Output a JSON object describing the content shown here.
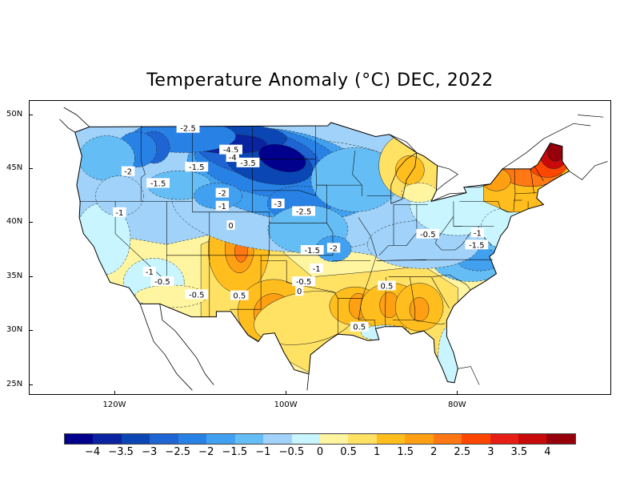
{
  "title": "Temperature Anomaly (°C) DEC, 2022",
  "lat_labels": [
    {
      "text": "50N",
      "lat": 50
    },
    {
      "text": "45N",
      "lat": 45
    },
    {
      "text": "40N",
      "lat": 40
    },
    {
      "text": "35N",
      "lat": 35
    },
    {
      "text": "30N",
      "lat": 30
    },
    {
      "text": "25N",
      "lat": 25
    }
  ],
  "lon_labels": [
    {
      "text": "120W",
      "lon": -120
    },
    {
      "text": "100W",
      "lon": -100
    },
    {
      "text": "80W",
      "lon": -80
    }
  ],
  "colorbar": {
    "colors": [
      "#00008c",
      "#0a23a0",
      "#0a46b4",
      "#1e64d2",
      "#2882e6",
      "#41a0f0",
      "#64bef5",
      "#a0d2fa",
      "#c8f5ff",
      "#fff5a0",
      "#ffe164",
      "#ffbe1e",
      "#ffa014",
      "#ff7814",
      "#ff4600",
      "#e61e14",
      "#c80a0a",
      "#96000a"
    ],
    "labels": [
      "−4",
      "−3.5",
      "−3",
      "−2.5",
      "−2",
      "−1.5",
      "−1",
      "−0.5",
      "0",
      "0.5",
      "1",
      "1.5",
      "2",
      "2.5",
      "3",
      "3.5",
      "4"
    ]
  },
  "contour_labels": [
    {
      "text": "-2.5",
      "lon": -111.5,
      "lat": 48.8
    },
    {
      "text": "-4.5",
      "lon": -106.5,
      "lat": 46.8
    },
    {
      "text": "-4",
      "lon": -106.3,
      "lat": 46.1
    },
    {
      "text": "-3.5",
      "lon": -104.5,
      "lat": 45.6
    },
    {
      "text": "-2",
      "lon": -118.5,
      "lat": 44.8
    },
    {
      "text": "-1.5",
      "lon": -110.5,
      "lat": 45.2
    },
    {
      "text": "-1.5",
      "lon": -115.0,
      "lat": 43.7
    },
    {
      "text": "-2",
      "lon": -107.5,
      "lat": 42.8
    },
    {
      "text": "-1",
      "lon": -107.5,
      "lat": 41.6
    },
    {
      "text": "-3",
      "lon": -101.0,
      "lat": 41.8
    },
    {
      "text": "-2.5",
      "lon": -98.0,
      "lat": 41.1
    },
    {
      "text": "-1",
      "lon": -119.5,
      "lat": 41.0
    },
    {
      "text": "0",
      "lon": -106.5,
      "lat": 39.8
    },
    {
      "text": "-1.5",
      "lon": -97.0,
      "lat": 37.5
    },
    {
      "text": "-2",
      "lon": -94.5,
      "lat": 37.7
    },
    {
      "text": "-1",
      "lon": -96.5,
      "lat": 35.8
    },
    {
      "text": "-0.5",
      "lon": -98.0,
      "lat": 34.6
    },
    {
      "text": "0",
      "lon": -98.5,
      "lat": 33.7
    },
    {
      "text": "-1",
      "lon": -116.0,
      "lat": 35.5
    },
    {
      "text": "-0.5",
      "lon": -114.5,
      "lat": 34.6
    },
    {
      "text": "-0.5",
      "lon": -110.5,
      "lat": 33.4
    },
    {
      "text": "0.5",
      "lon": -105.5,
      "lat": 33.3
    },
    {
      "text": "0.5",
      "lon": -88.3,
      "lat": 34.2
    },
    {
      "text": "0.5",
      "lon": -91.5,
      "lat": 30.4
    },
    {
      "text": "-0.5",
      "lon": -83.5,
      "lat": 39.0
    },
    {
      "text": "-1",
      "lon": -77.7,
      "lat": 39.1
    },
    {
      "text": "-1.5",
      "lon": -77.8,
      "lat": 38.0
    }
  ]
}
